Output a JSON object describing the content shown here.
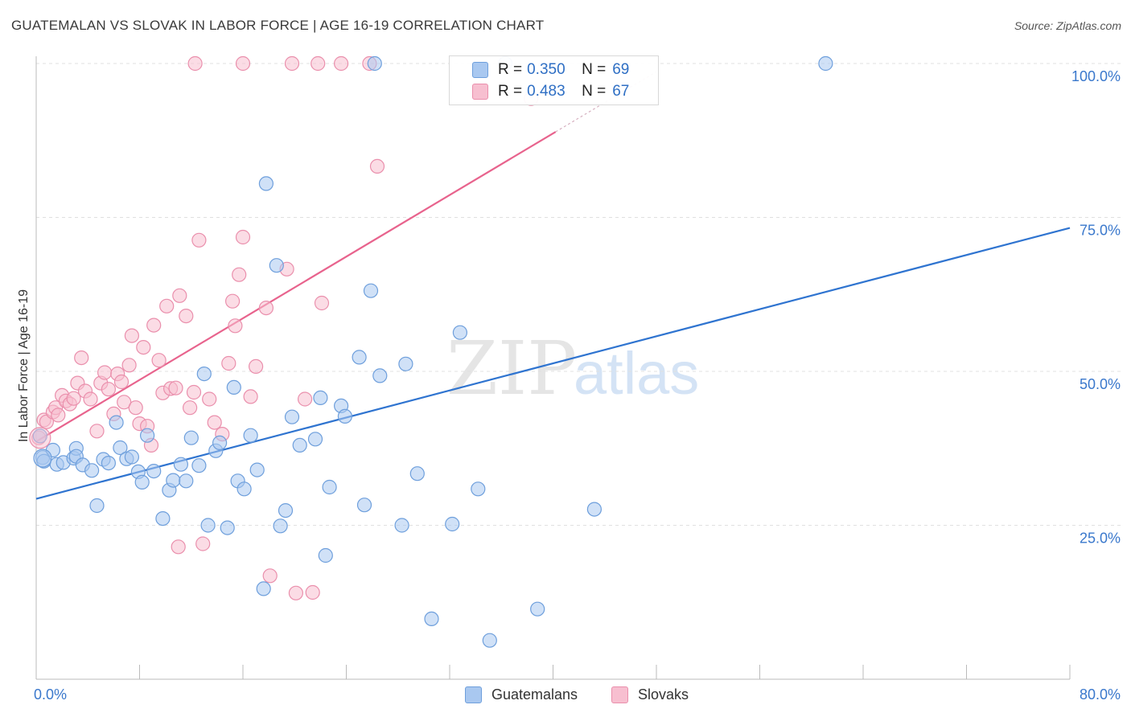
{
  "header": {
    "title": "GUATEMALAN VS SLOVAK IN LABOR FORCE | AGE 16-19 CORRELATION CHART",
    "source": "Source: ZipAtlas.com"
  },
  "watermark": {
    "zip": "ZIP",
    "atlas": "atlas"
  },
  "colors": {
    "blue_fill": "#a9c8f0",
    "blue_stroke": "#6e9fdc",
    "blue_line": "#2f74d0",
    "pink_fill": "#f7bfd0",
    "pink_stroke": "#ea8fac",
    "pink_line": "#e8638d",
    "tick_label": "#3a78cc"
  },
  "legend": {
    "rows": [
      {
        "r_label": "R =",
        "r_value": "0.350",
        "n_label": "N =",
        "n_value": "69"
      },
      {
        "r_label": "R =",
        "r_value": "0.483",
        "n_label": "N =",
        "n_value": "67"
      }
    ]
  },
  "bottom_legend": [
    {
      "label": "Guatemalans"
    },
    {
      "label": "Slovaks"
    }
  ],
  "chart_data": {
    "type": "scatter",
    "title": "GUATEMALAN VS SLOVAK IN LABOR FORCE | AGE 16-19 CORRELATION CHART",
    "xlabel": "",
    "ylabel": "In Labor Force | Age 16-19",
    "xlim": [
      0,
      80
    ],
    "ylim": [
      0,
      105
    ],
    "x_tick_labels": [
      "0.0%",
      "80.0%"
    ],
    "y_ticks": [
      25,
      50,
      75,
      100
    ],
    "y_tick_labels": [
      "25.0%",
      "50.0%",
      "75.0%",
      "100.0%"
    ],
    "grid": true,
    "legend_position": "top-center",
    "series": [
      {
        "name": "Guatemalans",
        "color": "#6e9fdc",
        "trend": {
          "x": [
            0,
            80
          ],
          "y": [
            29.3,
            73.3
          ]
        },
        "points": [
          [
            0.3,
            39.5
          ],
          [
            0.5,
            36
          ],
          [
            1.3,
            37.2
          ],
          [
            1.6,
            34.9
          ],
          [
            2.1,
            35.2
          ],
          [
            2.9,
            35.9
          ],
          [
            3.1,
            37.5
          ],
          [
            3.1,
            36.2
          ],
          [
            3.6,
            34.8
          ],
          [
            4.3,
            33.9
          ],
          [
            4.7,
            28.2
          ],
          [
            5.2,
            35.7
          ],
          [
            5.6,
            35.1
          ],
          [
            6.2,
            41.7
          ],
          [
            6.5,
            37.6
          ],
          [
            7.0,
            35.8
          ],
          [
            7.4,
            36.1
          ],
          [
            7.9,
            33.7
          ],
          [
            8.2,
            32.0
          ],
          [
            8.6,
            39.6
          ],
          [
            9.1,
            33.8
          ],
          [
            9.8,
            26.1
          ],
          [
            10.3,
            30.7
          ],
          [
            10.6,
            32.3
          ],
          [
            11.2,
            34.9
          ],
          [
            11.6,
            32.2
          ],
          [
            12.0,
            39.2
          ],
          [
            12.6,
            34.7
          ],
          [
            13.0,
            49.6
          ],
          [
            13.3,
            25.0
          ],
          [
            13.9,
            37.1
          ],
          [
            14.2,
            38.4
          ],
          [
            14.8,
            24.6
          ],
          [
            15.3,
            47.4
          ],
          [
            15.6,
            32.2
          ],
          [
            16.1,
            30.9
          ],
          [
            16.6,
            39.6
          ],
          [
            17.1,
            34.0
          ],
          [
            17.6,
            14.7
          ],
          [
            17.8,
            80.5
          ],
          [
            18.6,
            67.2
          ],
          [
            18.9,
            24.9
          ],
          [
            19.3,
            27.4
          ],
          [
            19.8,
            42.6
          ],
          [
            20.4,
            38.0
          ],
          [
            21.6,
            39.0
          ],
          [
            22.0,
            45.7
          ],
          [
            22.4,
            20.1
          ],
          [
            22.7,
            31.2
          ],
          [
            23.6,
            44.4
          ],
          [
            23.9,
            42.7
          ],
          [
            25.0,
            52.3
          ],
          [
            25.4,
            28.3
          ],
          [
            25.9,
            63.1
          ],
          [
            26.2,
            100.0
          ],
          [
            26.6,
            49.3
          ],
          [
            28.3,
            25.0
          ],
          [
            28.6,
            51.2
          ],
          [
            29.5,
            33.4
          ],
          [
            30.6,
            9.8
          ],
          [
            32.2,
            25.2
          ],
          [
            32.8,
            56.3
          ],
          [
            34.2,
            30.9
          ],
          [
            35.1,
            6.3
          ],
          [
            36.3,
            100.0
          ],
          [
            38.8,
            11.4
          ],
          [
            43.2,
            27.6
          ],
          [
            61.1,
            100.0
          ],
          [
            0.6,
            35.4
          ]
        ]
      },
      {
        "name": "Slovaks",
        "color": "#ea8fac",
        "trend": {
          "x": [
            0,
            40.2
          ],
          "y": [
            38.6,
            88.9
          ]
        },
        "points": [
          [
            0.2,
            39.2
          ],
          [
            0.6,
            42.1
          ],
          [
            0.8,
            41.8
          ],
          [
            1.3,
            43.4
          ],
          [
            1.5,
            44.1
          ],
          [
            1.7,
            42.9
          ],
          [
            2.0,
            46.1
          ],
          [
            2.3,
            45.2
          ],
          [
            2.6,
            44.7
          ],
          [
            2.9,
            45.6
          ],
          [
            3.2,
            48.1
          ],
          [
            3.5,
            52.2
          ],
          [
            3.8,
            46.8
          ],
          [
            4.2,
            45.5
          ],
          [
            4.7,
            40.3
          ],
          [
            5.0,
            48.1
          ],
          [
            5.3,
            49.8
          ],
          [
            5.6,
            47.1
          ],
          [
            6.0,
            43.1
          ],
          [
            6.3,
            49.6
          ],
          [
            6.6,
            48.3
          ],
          [
            6.8,
            45.0
          ],
          [
            7.2,
            51.0
          ],
          [
            7.4,
            55.8
          ],
          [
            7.7,
            44.1
          ],
          [
            8.0,
            41.5
          ],
          [
            8.3,
            53.9
          ],
          [
            8.6,
            41.1
          ],
          [
            8.9,
            38.0
          ],
          [
            9.1,
            57.5
          ],
          [
            9.5,
            51.8
          ],
          [
            9.8,
            46.5
          ],
          [
            10.1,
            60.6
          ],
          [
            10.4,
            47.2
          ],
          [
            10.8,
            47.3
          ],
          [
            11.1,
            62.3
          ],
          [
            11.6,
            59.0
          ],
          [
            11.9,
            44.1
          ],
          [
            12.2,
            46.6
          ],
          [
            12.6,
            71.3
          ],
          [
            12.9,
            22.0
          ],
          [
            13.4,
            45.5
          ],
          [
            13.8,
            41.7
          ],
          [
            14.4,
            39.8
          ],
          [
            14.9,
            51.3
          ],
          [
            15.2,
            61.4
          ],
          [
            15.4,
            57.4
          ],
          [
            15.7,
            65.7
          ],
          [
            16.0,
            71.8
          ],
          [
            16.6,
            45.9
          ],
          [
            17.0,
            50.8
          ],
          [
            17.8,
            60.3
          ],
          [
            18.1,
            16.8
          ],
          [
            19.4,
            66.6
          ],
          [
            20.1,
            14.0
          ],
          [
            20.8,
            45.5
          ],
          [
            21.4,
            14.1
          ],
          [
            22.1,
            61.1
          ],
          [
            23.6,
            100.0
          ],
          [
            25.8,
            100.0
          ],
          [
            26.4,
            83.3
          ],
          [
            38.3,
            94.3
          ],
          [
            12.3,
            100.0
          ],
          [
            16.0,
            100.0
          ],
          [
            19.8,
            100.0
          ],
          [
            21.8,
            100.0
          ],
          [
            11.0,
            21.5
          ]
        ]
      }
    ]
  }
}
